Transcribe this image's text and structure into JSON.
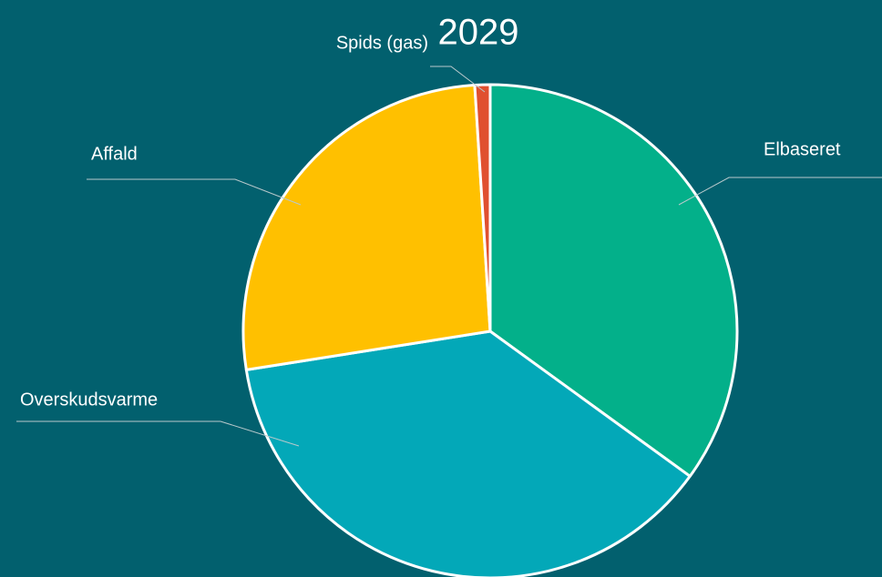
{
  "chart_data": {
    "type": "pie",
    "title": "2029",
    "categories": [
      "Elbaseret",
      "Overskudsvarme",
      "Affald",
      "Spids (gas)"
    ],
    "values": [
      35,
      37.5,
      26.5,
      1
    ],
    "colors": [
      "#03b08a",
      "#03a8b8",
      "#ffc000",
      "#e0502f"
    ]
  }
}
